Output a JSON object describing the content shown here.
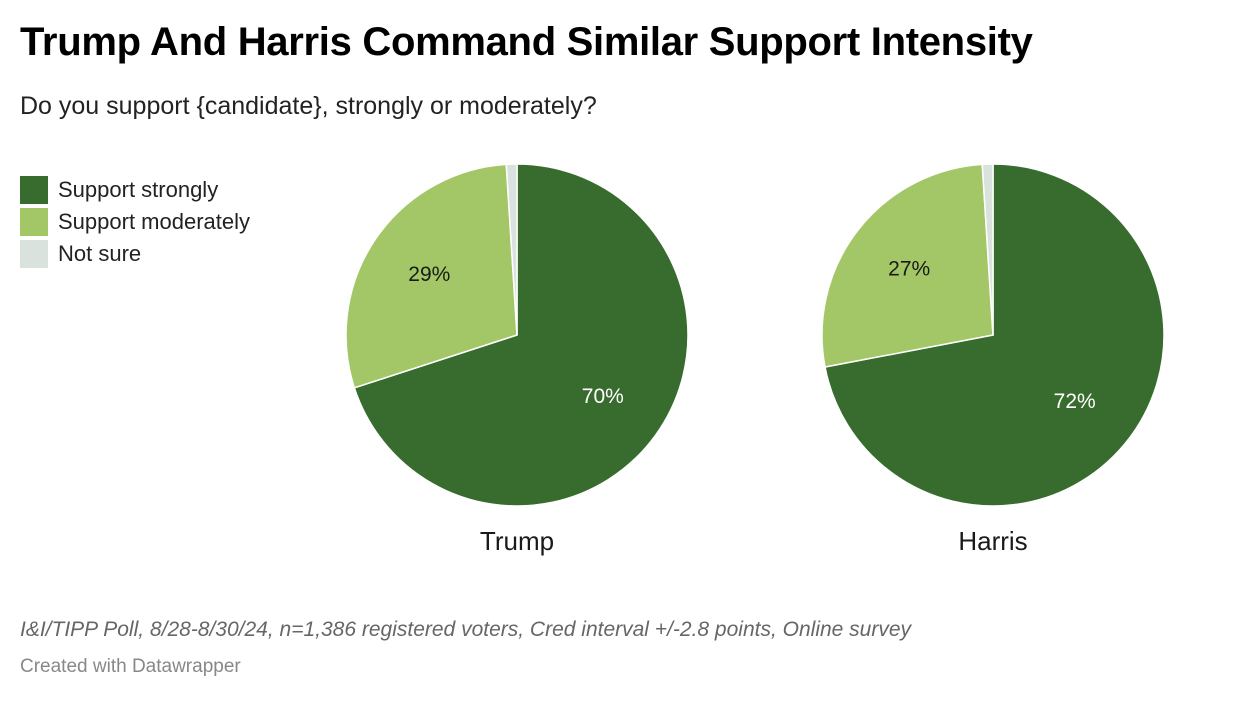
{
  "header": {
    "title": "Trump And Harris Command Similar Support Intensity",
    "subtitle": "Do you support {candidate}, strongly or moderately?"
  },
  "legend": [
    {
      "label": "Support strongly",
      "color": "#386c2f"
    },
    {
      "label": "Support moderately",
      "color": "#a3c766"
    },
    {
      "label": "Not sure",
      "color": "#d9e2dd"
    }
  ],
  "chart_data": [
    {
      "type": "pie",
      "name": "Trump",
      "labels": [
        "Support strongly",
        "Support moderately",
        "Not sure"
      ],
      "values": [
        70,
        29,
        1
      ],
      "value_labels": [
        "70%",
        "29%",
        ""
      ],
      "colors": [
        "#386c2f",
        "#a3c766",
        "#d9e2dd"
      ]
    },
    {
      "type": "pie",
      "name": "Harris",
      "labels": [
        "Support strongly",
        "Support moderately",
        "Not sure"
      ],
      "values": [
        72,
        27,
        1
      ],
      "value_labels": [
        "72%",
        "27%",
        ""
      ],
      "colors": [
        "#386c2f",
        "#a3c766",
        "#d9e2dd"
      ]
    }
  ],
  "footer": {
    "notes": "I&I/TIPP Poll, 8/28-8/30/24, n=1,386 registered voters, Cred interval +/-2.8 points, Online survey",
    "credit": "Created with Datawrapper"
  }
}
